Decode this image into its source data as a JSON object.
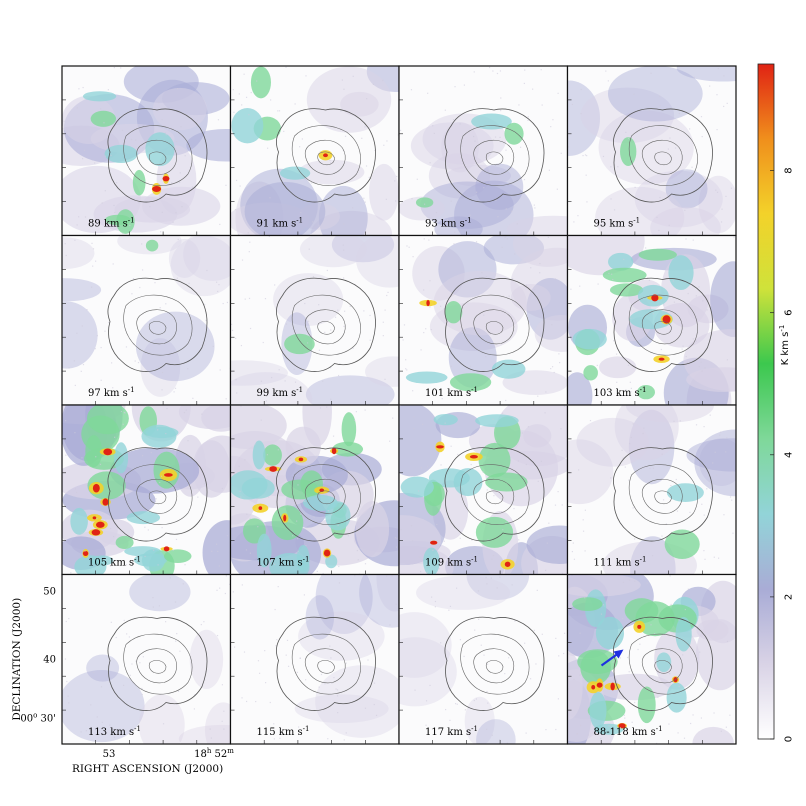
{
  "chart_data": {
    "type": "heatmap",
    "title": "",
    "panels": [
      {
        "label": "89 km s",
        "sup": "-1",
        "intensity": 0.55
      },
      {
        "label": "91 km s",
        "sup": "-1",
        "intensity": 0.4
      },
      {
        "label": "93 km s",
        "sup": "-1",
        "intensity": 0.35
      },
      {
        "label": "95 km s",
        "sup": "-1",
        "intensity": 0.25
      },
      {
        "label": "97 km s",
        "sup": "-1",
        "intensity": 0.18
      },
      {
        "label": "99 km s",
        "sup": "-1",
        "intensity": 0.18
      },
      {
        "label": "101 km s",
        "sup": "-1",
        "intensity": 0.4
      },
      {
        "label": "103 km s",
        "sup": "-1",
        "intensity": 0.7
      },
      {
        "label": "105 km s",
        "sup": "-1",
        "intensity": 0.95
      },
      {
        "label": "107 km s",
        "sup": "-1",
        "intensity": 0.9
      },
      {
        "label": "109 km s",
        "sup": "-1",
        "intensity": 0.75
      },
      {
        "label": "111 km s",
        "sup": "-1",
        "intensity": 0.3
      },
      {
        "label": "113 km s",
        "sup": "-1",
        "intensity": 0.08
      },
      {
        "label": "115 km s",
        "sup": "-1",
        "intensity": 0.04
      },
      {
        "label": "117 km s",
        "sup": "-1",
        "intensity": 0.02
      },
      {
        "label": "88-118 km s",
        "sup": "-1",
        "intensity": 0.85
      }
    ],
    "xlabel": "RIGHT ASCENSION (J2000)",
    "ylabel": "DECLINATION (J2000)",
    "xticks": [
      {
        "text": "53"
      },
      {
        "text": "18",
        "sup": "h",
        "text2": "52",
        "sup2": "m"
      }
    ],
    "yticks": [
      {
        "text": "50"
      },
      {
        "text": "40"
      },
      {
        "text": "00",
        "sup": "o",
        "text2": "30'"
      }
    ],
    "colorbar": {
      "label": "K km s",
      "sup": "-1",
      "ticks": [
        "0",
        "2",
        "4",
        "6",
        "8"
      ],
      "range": [
        0,
        9.5
      ],
      "colors": [
        "#ffffff",
        "#d9d3e6",
        "#a9acd6",
        "#92d4d8",
        "#7fd89a",
        "#3cc84e",
        "#cfe23a",
        "#f3d22a",
        "#f08f1c",
        "#e02314"
      ]
    },
    "annotations": [
      {
        "type": "arrow",
        "color": "#1f30e0",
        "panel": 16
      }
    ]
  }
}
